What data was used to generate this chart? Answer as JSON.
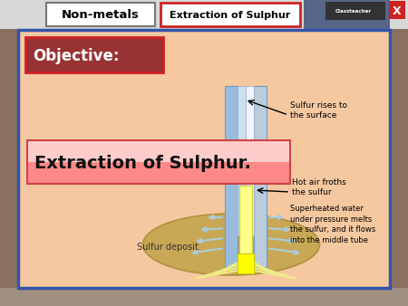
{
  "bg_color": "#f5c8a0",
  "outer_border_color": "#3355aa",
  "header_bg": "#d8d8d8",
  "nonmetals_text": "Non-metals",
  "tab_text": "Extraction of Sulphur",
  "objective_bg": "#993333",
  "objective_text": "Objective:",
  "title_text": "Extraction of Sulphur.",
  "ellipse_color": "#c8a855",
  "ellipse_edge": "#b09040",
  "sulfur_deposit_text": "Sulfur deposit",
  "sulfur_rises_text": "Sulfur rises to\nthe surface",
  "hot_air_text": "Hot air froths\nthe sulfur",
  "superheated_text": "Superheated water\nunder pressure melts\nthe sulfur, and it flows\ninto the middle tube",
  "tube_outer_left_color": "#99bbdd",
  "tube_outer_right_color": "#bbccdd",
  "tube_mid_left_color": "#cce0ee",
  "tube_mid_right_color": "#ddeeff",
  "tube_mid_white": "#eef5ff",
  "tube_yellow_color": "#ffff88",
  "tube_yellow_bright": "#ffff00",
  "spray_color_blue": "#aaccdd",
  "spray_color_yellow": "#eeee88",
  "side_bg": "#a09080",
  "logo_bg": "#333333",
  "logo_text_color": "#ffffff",
  "x_btn_color": "#cc2222",
  "title_pink_top": "#ffcccc",
  "title_pink_bottom": "#ff8888"
}
